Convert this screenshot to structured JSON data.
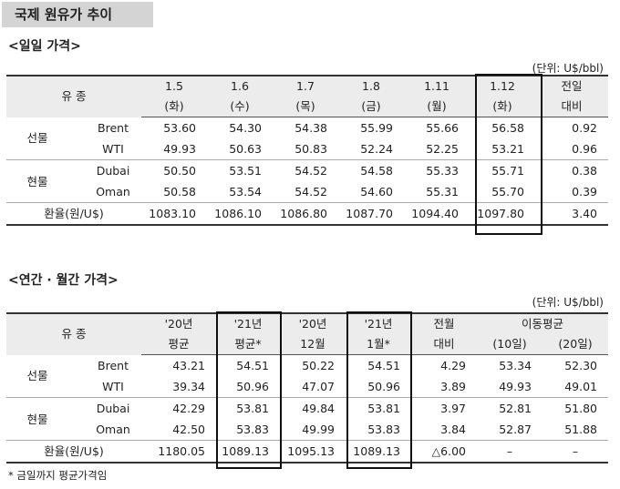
{
  "title": "국제 원유가 추이",
  "daily": {
    "section_title": "<일일 가격>",
    "unit": "(단위: U$/bbl)",
    "item_header": "유 종",
    "cols": [
      {
        "top": "1.5",
        "bottom": "(화)"
      },
      {
        "top": "1.6",
        "bottom": "(수)"
      },
      {
        "top": "1.7",
        "bottom": "(목)"
      },
      {
        "top": "1.8",
        "bottom": "(금)"
      },
      {
        "top": "1.11",
        "bottom": "(월)"
      },
      {
        "top": "1.12",
        "bottom": "(화)"
      },
      {
        "top": "전일",
        "bottom": "대비"
      }
    ],
    "groups": [
      {
        "name": "선물",
        "rows": [
          {
            "item": "Brent",
            "values": [
              "53.60",
              "54.30",
              "54.38",
              "55.99",
              "55.66",
              "56.58",
              "0.92"
            ]
          },
          {
            "item": "WTI",
            "values": [
              "49.93",
              "50.63",
              "50.83",
              "52.24",
              "52.25",
              "53.21",
              "0.96"
            ]
          }
        ]
      },
      {
        "name": "현물",
        "rows": [
          {
            "item": "Dubai",
            "values": [
              "50.50",
              "53.51",
              "54.52",
              "54.58",
              "55.33",
              "55.71",
              "0.38"
            ]
          },
          {
            "item": "Oman",
            "values": [
              "50.58",
              "53.54",
              "54.52",
              "54.60",
              "55.31",
              "55.70",
              "0.39"
            ]
          }
        ]
      }
    ],
    "fx": {
      "label": "환율(원/U$)",
      "values": [
        "1083.10",
        "1086.10",
        "1086.80",
        "1087.70",
        "1094.40",
        "1097.80",
        "3.40"
      ]
    }
  },
  "annual": {
    "section_title": "<연간 · 월간 가격>",
    "unit": "(단위: U$/bbl)",
    "item_header": "유 종",
    "cols": [
      {
        "top": "'20년",
        "bottom": "평균"
      },
      {
        "top": "'21년",
        "bottom": "평균*"
      },
      {
        "top": "'20년",
        "bottom": "12월"
      },
      {
        "top": "'21년",
        "bottom": "1월*"
      },
      {
        "top": "전월",
        "bottom": "대비"
      }
    ],
    "moving_avg": {
      "label": "이동평균",
      "sub": [
        "(10일)",
        "(20일)"
      ]
    },
    "groups": [
      {
        "name": "선물",
        "rows": [
          {
            "item": "Brent",
            "values": [
              "43.21",
              "54.51",
              "50.22",
              "54.51",
              "4.29",
              "53.34",
              "52.30"
            ]
          },
          {
            "item": "WTI",
            "values": [
              "39.34",
              "50.96",
              "47.07",
              "50.96",
              "3.89",
              "49.93",
              "49.01"
            ]
          }
        ]
      },
      {
        "name": "현물",
        "rows": [
          {
            "item": "Dubai",
            "values": [
              "42.29",
              "53.81",
              "49.84",
              "53.81",
              "3.97",
              "52.81",
              "51.80"
            ]
          },
          {
            "item": "Oman",
            "values": [
              "42.50",
              "53.83",
              "49.99",
              "53.83",
              "3.84",
              "52.87",
              "51.88"
            ]
          }
        ]
      }
    ],
    "fx": {
      "label": "환율(원/U$)",
      "values": [
        "1180.05",
        "1089.13",
        "1095.13",
        "1089.13",
        "△6.00",
        "–",
        "–"
      ]
    }
  },
  "footnote": "* 금일까지 평균가격임"
}
